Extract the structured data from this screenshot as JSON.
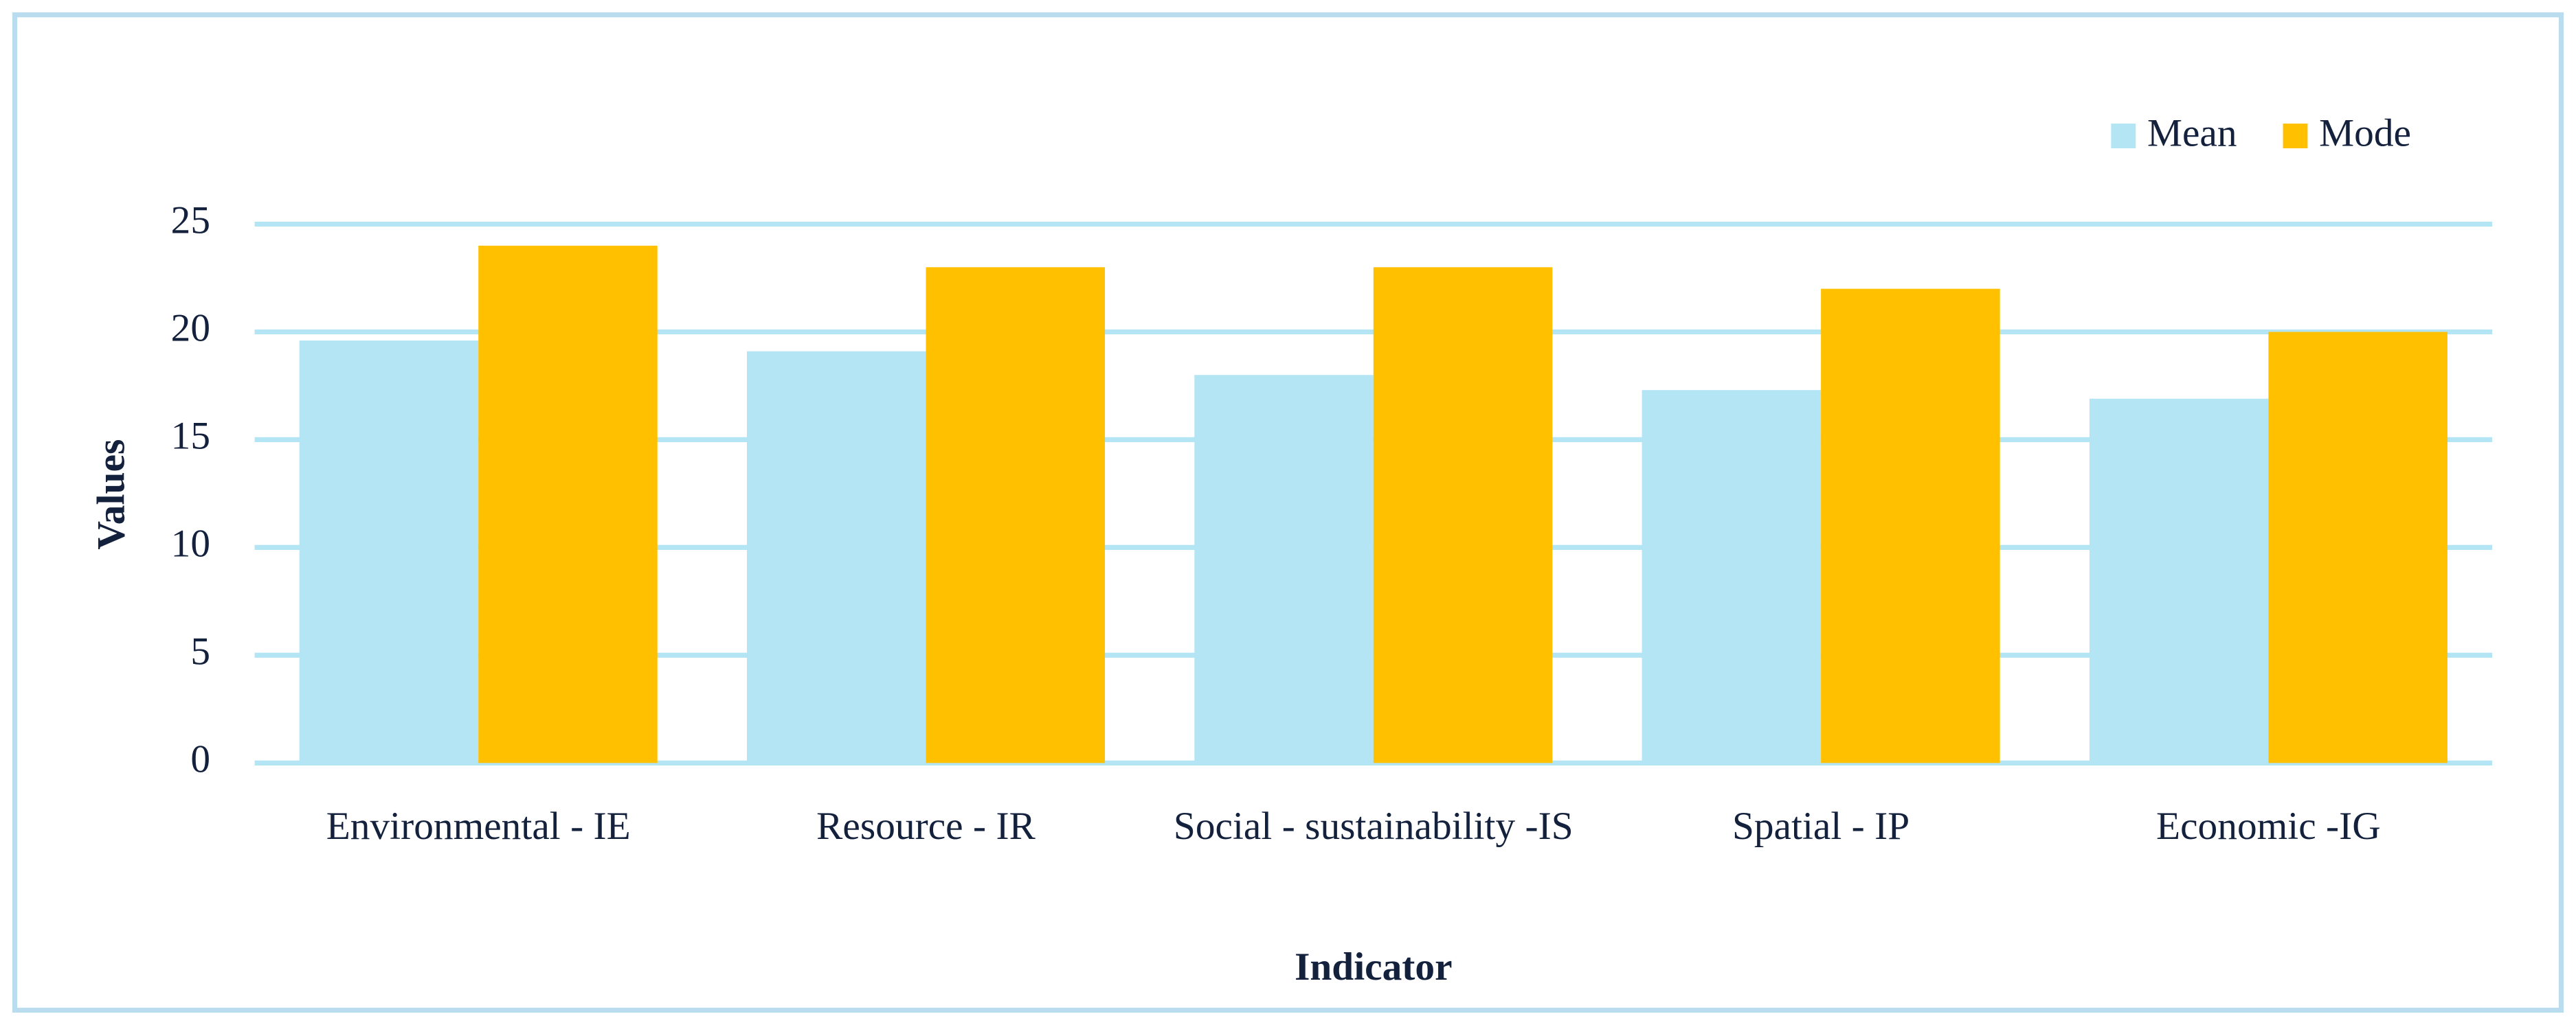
{
  "chart_data": {
    "type": "bar",
    "x_label": "Indicator",
    "y_label": "Values",
    "categories": [
      "Environmental - IE",
      "Resource - IR",
      "Social - sustainability -IS",
      "Spatial - IP",
      "Economic -IG"
    ],
    "series": [
      {
        "name": "Mean",
        "color": "#b3e5f4",
        "values": [
          19.6,
          19.1,
          18.0,
          17.3,
          16.9
        ]
      },
      {
        "name": "Mode",
        "color": "#ffc000",
        "values": [
          24,
          23,
          23,
          22,
          20
        ]
      }
    ],
    "ylim": [
      0,
      25
    ],
    "yticks": [
      0,
      5,
      10,
      15,
      20,
      25
    ],
    "grid": true,
    "legend": "top-right"
  }
}
